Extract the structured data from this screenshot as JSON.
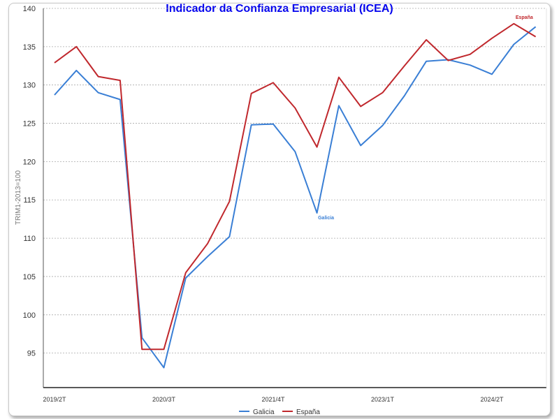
{
  "chart_data": {
    "type": "line",
    "title": "Indicador da Confianza Empresarial (ICEA)",
    "xlabel": "",
    "ylabel": "TRIM1-2013=100",
    "ylim": [
      90.5,
      140
    ],
    "yticks": [
      95,
      100,
      105,
      110,
      115,
      120,
      125,
      130,
      135,
      140
    ],
    "x": [
      "2019/2T",
      "2019/3T",
      "2019/4T",
      "2020/1T",
      "2020/2T",
      "2020/3T",
      "2020/4T",
      "2021/1T",
      "2021/2T",
      "2021/3T",
      "2021/4T",
      "2022/1T",
      "2022/2T",
      "2022/3T",
      "2022/4T",
      "2023/1T",
      "2023/2T",
      "2023/3T",
      "2023/4T",
      "2024/1T",
      "2024/2T",
      "2024/3T",
      "2024/4T"
    ],
    "xtick_labels": [
      "2019/2T",
      "2020/3T",
      "2021/4T",
      "2023/1T",
      "2024/2T"
    ],
    "grid": true,
    "legend_position": "bottom",
    "series": [
      {
        "name": "Galicia",
        "color": "#3a7fd5",
        "values": [
          128.7,
          131.9,
          129.0,
          128.1,
          97.0,
          93.1,
          104.8,
          107.6,
          110.2,
          124.8,
          124.9,
          121.3,
          113.3,
          127.3,
          122.1,
          124.7,
          128.6,
          133.1,
          133.3,
          132.6,
          131.4,
          135.3,
          137.6
        ]
      },
      {
        "name": "España",
        "color": "#c0282d",
        "values": [
          132.9,
          135.0,
          131.1,
          130.6,
          95.5,
          95.5,
          105.5,
          109.3,
          114.8,
          128.9,
          130.3,
          127.0,
          121.9,
          131.0,
          127.2,
          129.0,
          132.5,
          135.9,
          133.2,
          134.0,
          136.1,
          138.0,
          136.3
        ]
      }
    ],
    "annotations": [
      {
        "text": "Galicia",
        "color": "#3a7fd5",
        "series_index": 0,
        "point_index": 12
      },
      {
        "text": "España",
        "color": "#c0282d",
        "series_index": 1,
        "point_index": 21
      }
    ]
  }
}
